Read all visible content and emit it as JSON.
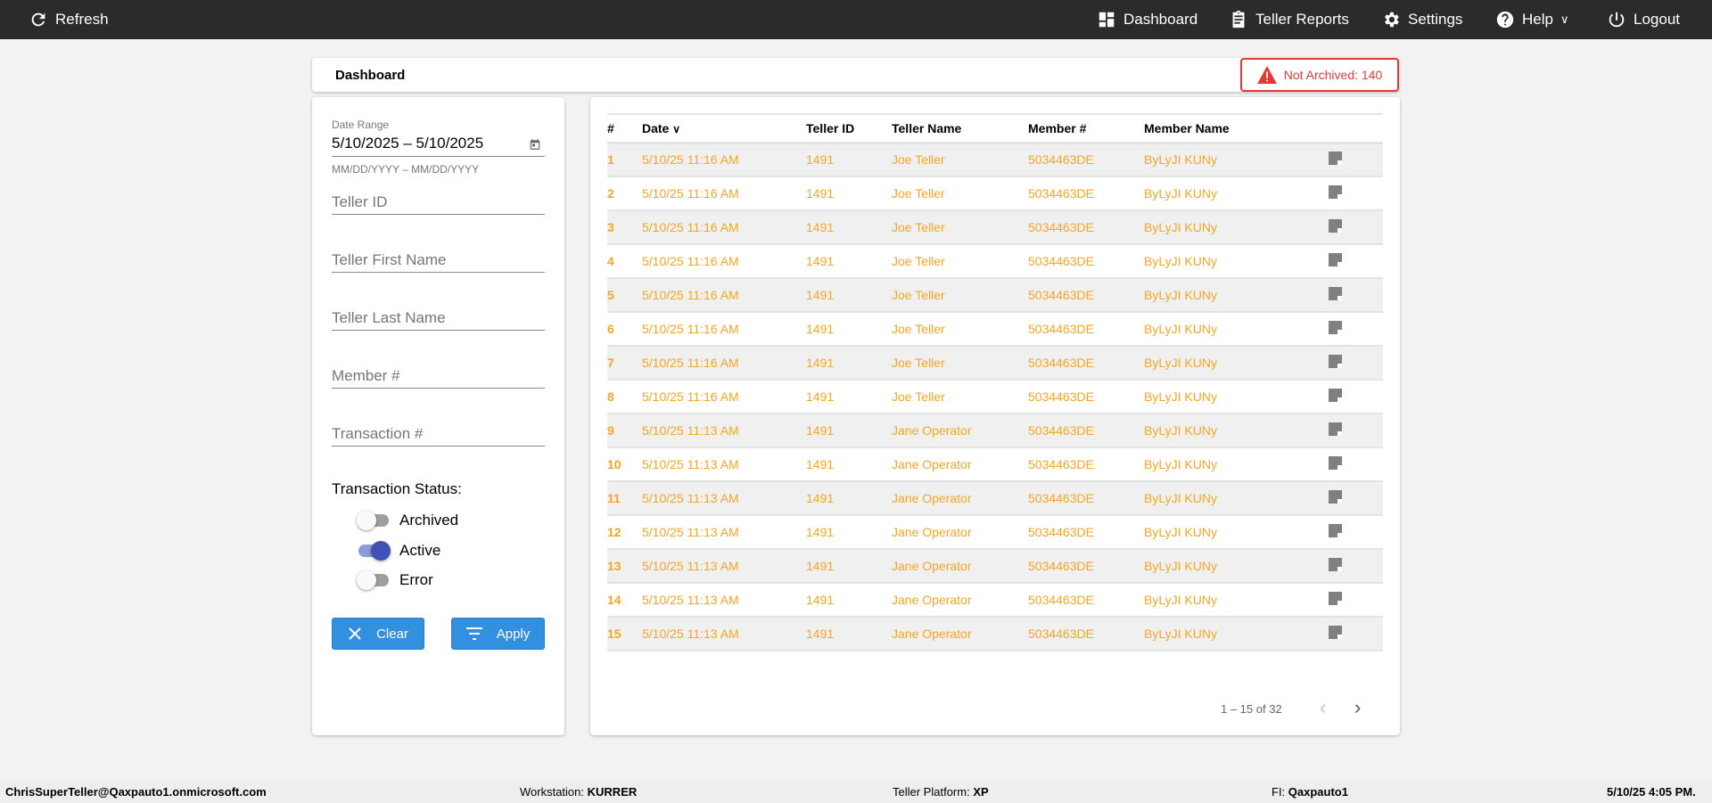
{
  "topbar": {
    "refresh": "Refresh",
    "nav": [
      {
        "label": "Dashboard",
        "icon": "dashboard-icon"
      },
      {
        "label": "Teller Reports",
        "icon": "clipboard-icon"
      },
      {
        "label": "Settings",
        "icon": "gear-icon"
      },
      {
        "label": "Help",
        "icon": "help-icon"
      },
      {
        "label": "Logout",
        "icon": "power-icon"
      }
    ]
  },
  "header": {
    "title": "Dashboard",
    "badge": "Not Archived: 140",
    "badge_color": "#e53935"
  },
  "filters": {
    "date_label": "Date Range",
    "date_value": "5/10/2025 – 5/10/2025",
    "date_hint": "MM/DD/YYYY – MM/DD/YYYY",
    "teller_id": "Teller ID",
    "first_name": "Teller First Name",
    "last_name": "Teller Last Name",
    "member": "Member #",
    "transaction": "Transaction #",
    "status_title": "Transaction Status:",
    "toggles": [
      {
        "label": "Archived",
        "on": false
      },
      {
        "label": "Active",
        "on": true
      },
      {
        "label": "Error",
        "on": false
      }
    ],
    "clear": "Clear",
    "apply": "Apply"
  },
  "table": {
    "headers": [
      "#",
      "Date",
      "Teller ID",
      "Teller Name",
      "Member #",
      "Member Name"
    ],
    "rows": [
      [
        "1",
        "5/10/25 11:16 AM",
        "1491",
        "Joe Teller",
        "5034463DE",
        "ByLyJI KUNy"
      ],
      [
        "2",
        "5/10/25 11:16 AM",
        "1491",
        "Joe Teller",
        "5034463DE",
        "ByLyJI KUNy"
      ],
      [
        "3",
        "5/10/25 11:16 AM",
        "1491",
        "Joe Teller",
        "5034463DE",
        "ByLyJI KUNy"
      ],
      [
        "4",
        "5/10/25 11:16 AM",
        "1491",
        "Joe Teller",
        "5034463DE",
        "ByLyJI KUNy"
      ],
      [
        "5",
        "5/10/25 11:16 AM",
        "1491",
        "Joe Teller",
        "5034463DE",
        "ByLyJI KUNy"
      ],
      [
        "6",
        "5/10/25 11:16 AM",
        "1491",
        "Joe Teller",
        "5034463DE",
        "ByLyJI KUNy"
      ],
      [
        "7",
        "5/10/25 11:16 AM",
        "1491",
        "Joe Teller",
        "5034463DE",
        "ByLyJI KUNy"
      ],
      [
        "8",
        "5/10/25 11:16 AM",
        "1491",
        "Joe Teller",
        "5034463DE",
        "ByLyJI KUNy"
      ],
      [
        "9",
        "5/10/25 11:13 AM",
        "1491",
        "Jane Operator",
        "5034463DE",
        "ByLyJI KUNy"
      ],
      [
        "10",
        "5/10/25 11:13 AM",
        "1491",
        "Jane Operator",
        "5034463DE",
        "ByLyJI KUNy"
      ],
      [
        "11",
        "5/10/25 11:13 AM",
        "1491",
        "Jane Operator",
        "5034463DE",
        "ByLyJI KUNy"
      ],
      [
        "12",
        "5/10/25 11:13 AM",
        "1491",
        "Jane Operator",
        "5034463DE",
        "ByLyJI KUNy"
      ],
      [
        "13",
        "5/10/25 11:13 AM",
        "1491",
        "Jane Operator",
        "5034463DE",
        "ByLyJI KUNy"
      ],
      [
        "14",
        "5/10/25 11:13 AM",
        "1491",
        "Jane Operator",
        "5034463DE",
        "ByLyJI KUNy"
      ],
      [
        "15",
        "5/10/25 11:13 AM",
        "1491",
        "Jane Operator",
        "5034463DE",
        "ByLyJI KUNy"
      ]
    ],
    "pager": "1 – 15 of 32",
    "row_color": "#f5a623"
  },
  "footer": {
    "user": "ChrisSuperTeller@Qaxpauto1.onmicrosoft.com",
    "workstation_label": "Workstation:",
    "workstation": "KURRER",
    "platform_label": "Teller Platform:",
    "platform": "XP",
    "fi_label": "FI:",
    "fi": "Qaxpauto1",
    "datetime": "5/10/25 4:05 PM."
  }
}
